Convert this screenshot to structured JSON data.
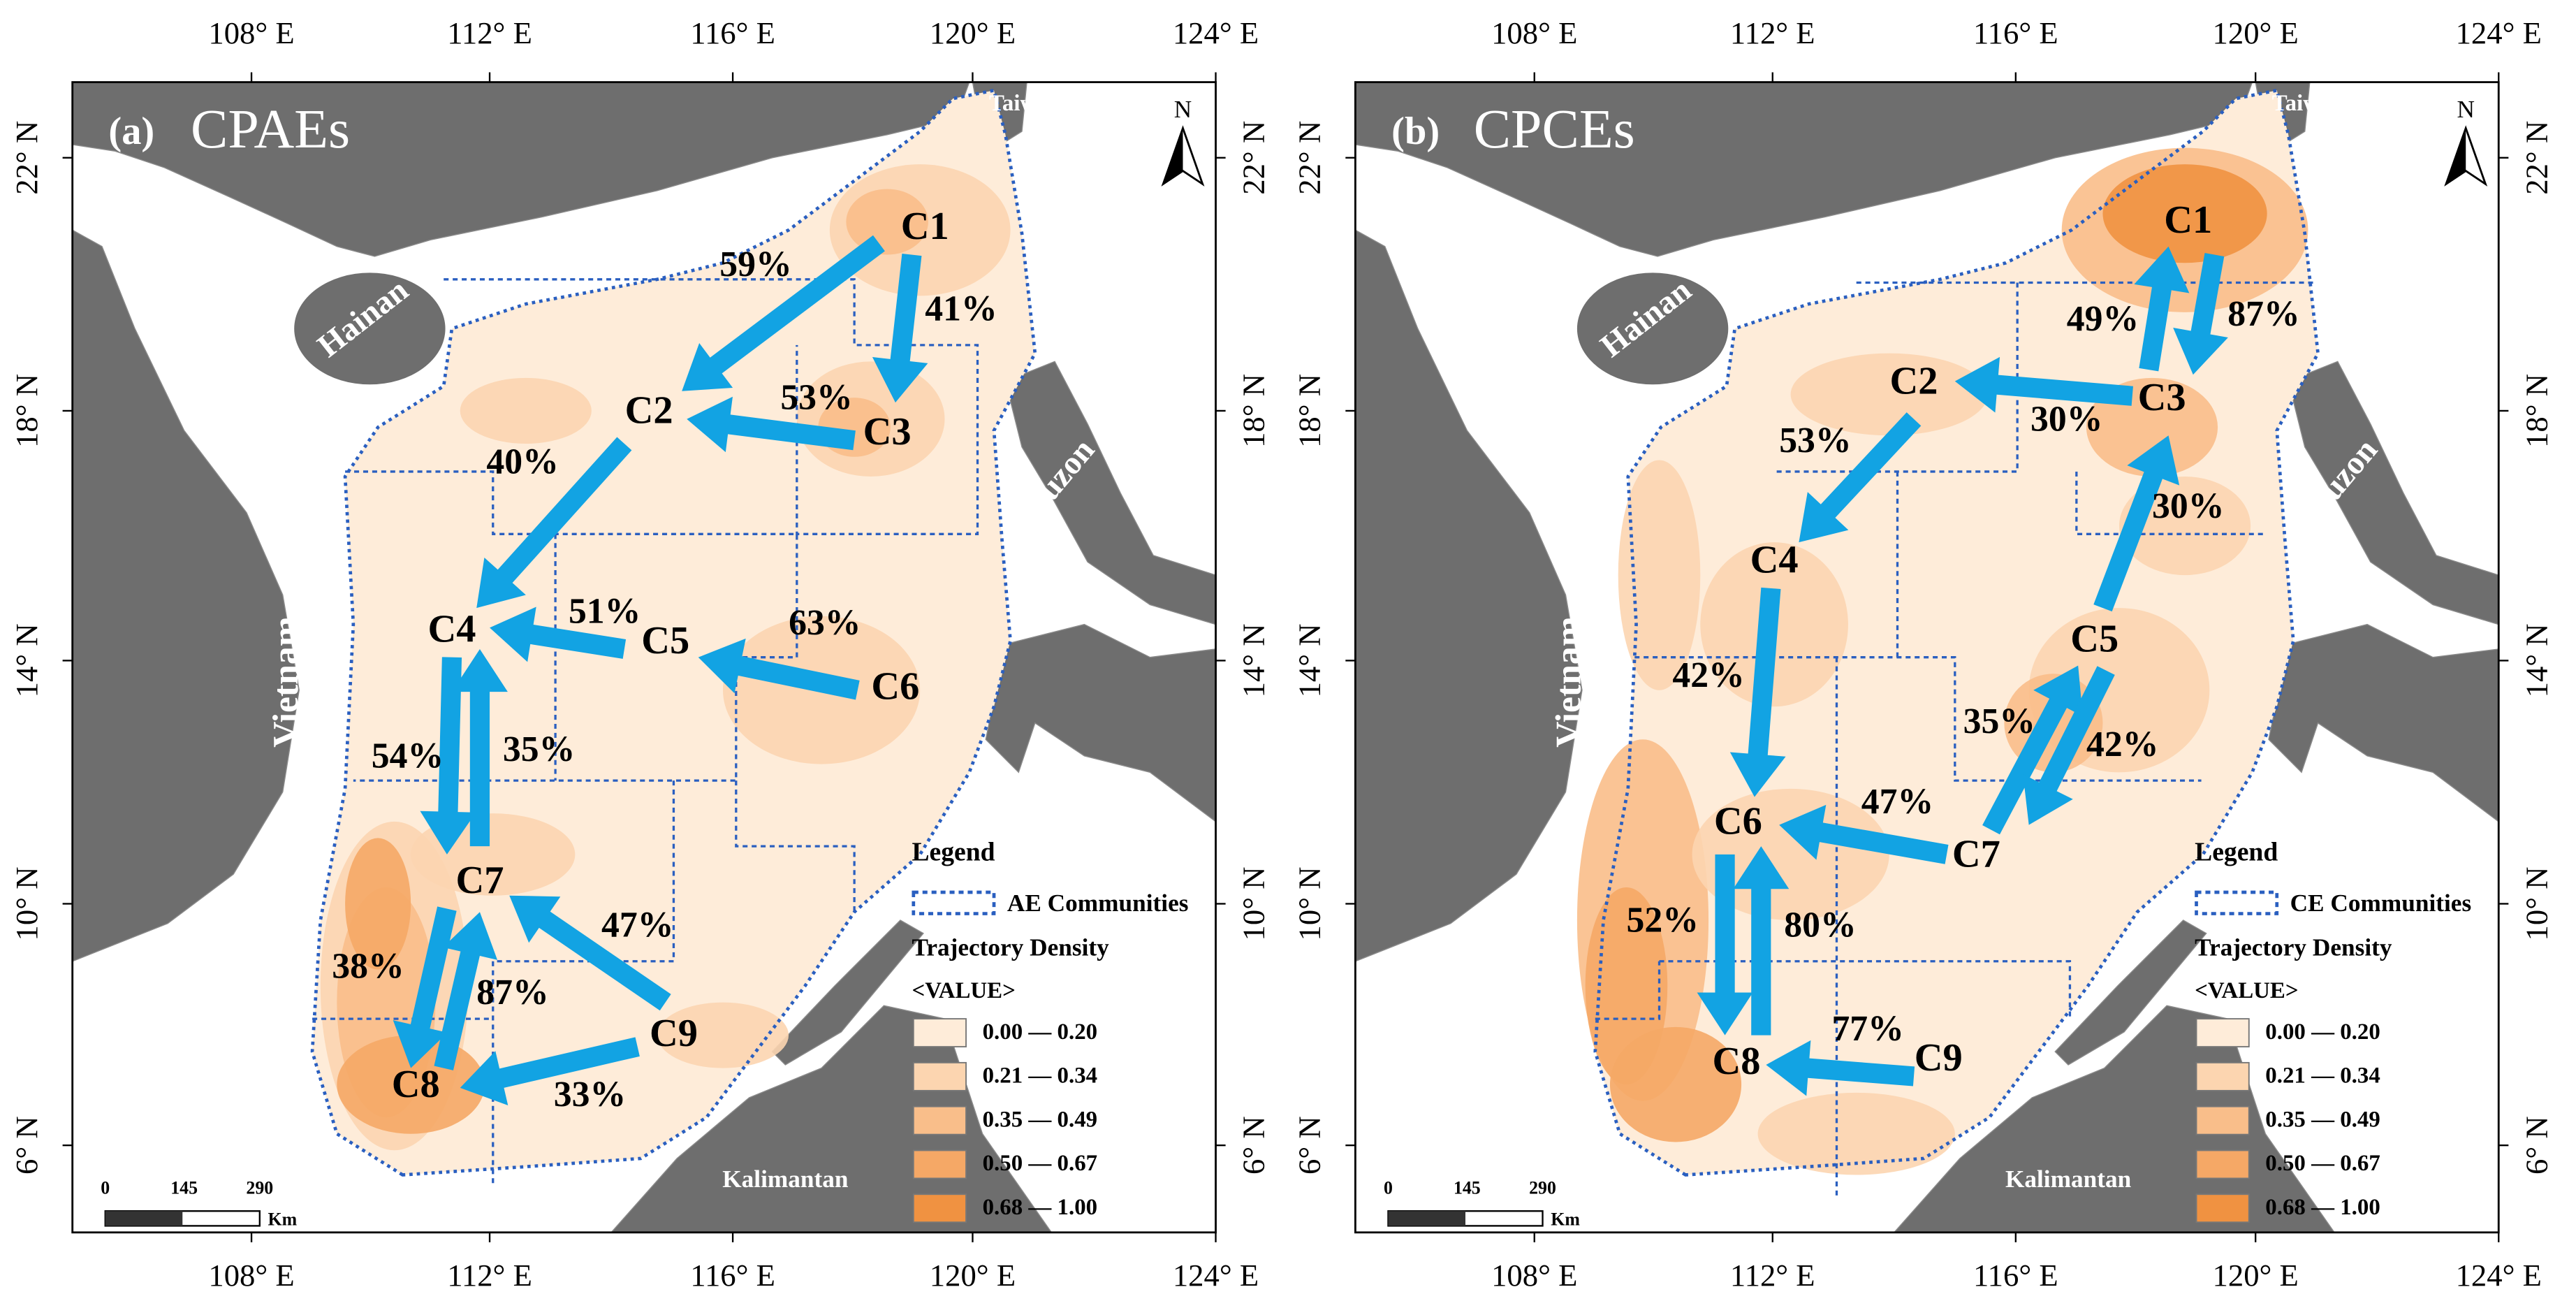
{
  "x_ticks": [
    "108° E",
    "112° E",
    "116° E",
    "120° E",
    "124° E"
  ],
  "y_ticks": [
    "22° N",
    "18° N",
    "14° N",
    "10° N",
    "6° N"
  ],
  "panels": [
    {
      "label": "(a)",
      "title": "CPAEs",
      "north": "N",
      "places": {
        "taiwan": "Taiwan",
        "hainan": "Hainan",
        "vietnam": "Vietnam",
        "luzon": "Luzon",
        "kalimantan": "Kalimantan"
      },
      "communities": [
        "C1",
        "C2",
        "C3",
        "C4",
        "C5",
        "C6",
        "C7",
        "C8",
        "C9"
      ],
      "flows": [
        "59%",
        "41%",
        "53%",
        "40%",
        "51%",
        "63%",
        "54%",
        "35%",
        "47%",
        "38%",
        "87%",
        "33%"
      ],
      "legend": {
        "title": "Legend",
        "boundary": "AE Communities",
        "density_title": "Trajectory Density",
        "field": "<VALUE>",
        "classes": [
          {
            "label": "0.00 — 0.20",
            "color": "#feecd9"
          },
          {
            "label": "0.21 — 0.34",
            "color": "#fcd5b0"
          },
          {
            "label": "0.35 — 0.49",
            "color": "#f9be8a"
          },
          {
            "label": "0.50 — 0.67",
            "color": "#f5a866"
          },
          {
            "label": "0.68 — 1.00",
            "color": "#f09241"
          }
        ]
      },
      "scale": {
        "ticks": [
          "0",
          "145",
          "290"
        ],
        "unit": "Km"
      }
    },
    {
      "label": "(b)",
      "title": "CPCEs",
      "north": "N",
      "places": {
        "taiwan": "Taiwan",
        "hainan": "Hainan",
        "vietnam": "Vietnam",
        "luzon": "Luzon",
        "kalimantan": "Kalimantan"
      },
      "communities": [
        "C1",
        "C2",
        "C3",
        "C4",
        "C5",
        "C6",
        "C7",
        "C8",
        "C9"
      ],
      "flows": [
        "49%",
        "87%",
        "30%",
        "53%",
        "30%",
        "42%",
        "35%",
        "42%",
        "47%",
        "52%",
        "80%",
        "77%"
      ],
      "legend": {
        "title": "Legend",
        "boundary": "CE Communities",
        "density_title": "Trajectory Density",
        "field": "<VALUE>",
        "classes": [
          {
            "label": "0.00 — 0.20",
            "color": "#feecd9"
          },
          {
            "label": "0.21 — 0.34",
            "color": "#fcd5b0"
          },
          {
            "label": "0.35 — 0.49",
            "color": "#f9be8a"
          },
          {
            "label": "0.50 — 0.67",
            "color": "#f5a866"
          },
          {
            "label": "0.68 — 1.00",
            "color": "#f09241"
          }
        ]
      },
      "scale": {
        "ticks": [
          "0",
          "145",
          "290"
        ],
        "unit": "Km"
      }
    }
  ]
}
